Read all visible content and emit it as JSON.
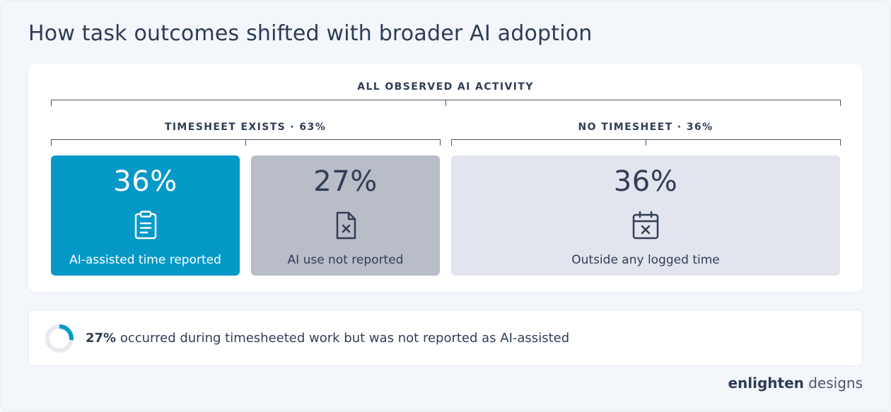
{
  "title": "How task outcomes shifted with broader AI adoption",
  "brackets": {
    "all": "ALL OBSERVED AI ACTIVITY",
    "timesheet": "TIMESHEET EXISTS · 63%",
    "no_timesheet": "NO TIMESHEET · 36%"
  },
  "segments": [
    {
      "value": "36%",
      "label": "AI-assisted time reported",
      "icon": "clipboard-icon",
      "color": "#0599c8"
    },
    {
      "value": "27%",
      "label": "AI use not reported",
      "icon": "file-x-icon",
      "color": "#b9bdc8"
    },
    {
      "value": "36%",
      "label": "Outside any logged time",
      "icon": "calendar-x-icon",
      "color": "#e2e5ee"
    }
  ],
  "note": {
    "value": "27%",
    "text": " occurred during timesheeted work but was not reported as AI-assisted",
    "donut_fraction": 0.27,
    "donut_color": "#0599c8"
  },
  "brand": {
    "part1": "enlighten",
    "part2": " designs"
  }
}
